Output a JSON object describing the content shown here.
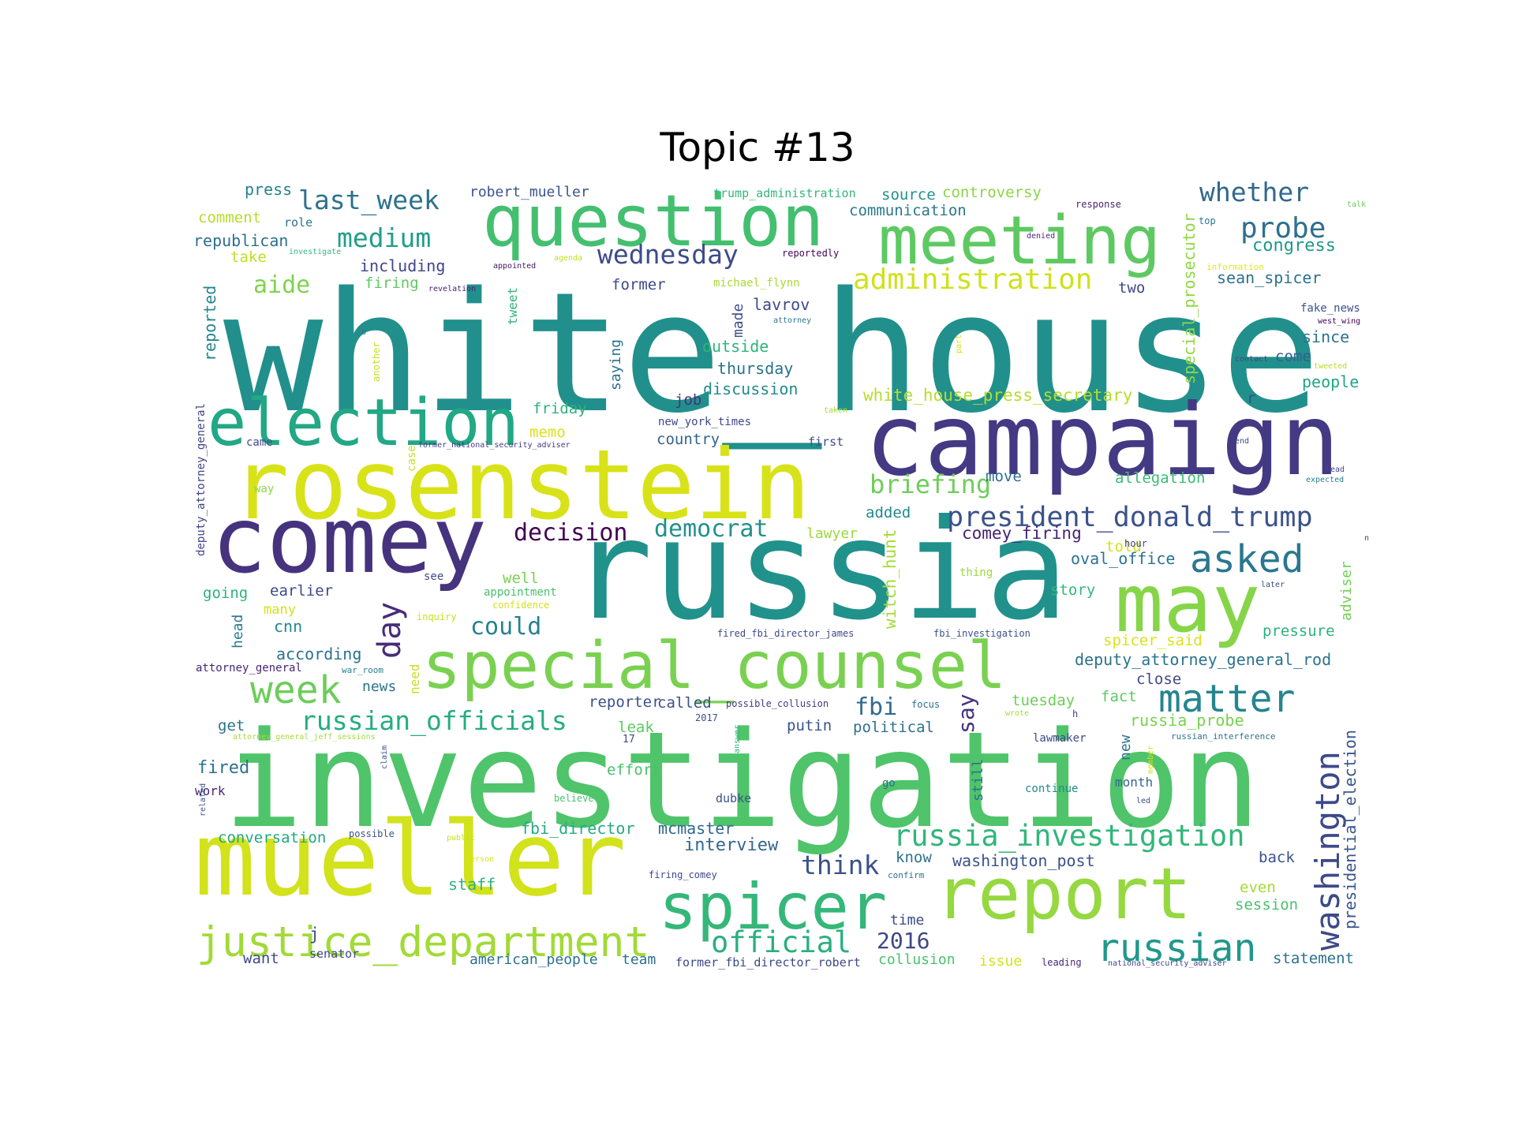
{
  "title": "Topic #13",
  "colors": {
    "background": "#ffffff",
    "title": "#000000"
  },
  "words": [
    {
      "text": "white_house",
      "c": "#21908c"
    },
    {
      "text": "investigation",
      "c": "#4fc46a"
    },
    {
      "text": "russia",
      "c": "#21918c"
    },
    {
      "text": "campaign",
      "c": "#443983"
    },
    {
      "text": "rosenstein",
      "c": "#d8e219"
    },
    {
      "text": "mueller",
      "c": "#d2e21b"
    },
    {
      "text": "comey",
      "c": "#46337e"
    },
    {
      "text": "question",
      "c": "#44bf70"
    },
    {
      "text": "meeting",
      "c": "#5ec962"
    },
    {
      "text": "election",
      "c": "#22a884"
    },
    {
      "text": "special_counsel",
      "c": "#7ad151"
    },
    {
      "text": "report",
      "c": "#95d840"
    },
    {
      "text": "may",
      "c": "#86d549"
    },
    {
      "text": "spicer",
      "c": "#35b779"
    },
    {
      "text": "justice_department",
      "c": "#a2da37"
    },
    {
      "text": "washington",
      "c": "#3e4989"
    },
    {
      "text": "russian",
      "c": "#1f988b"
    },
    {
      "text": "matter",
      "c": "#25858e"
    },
    {
      "text": "week",
      "c": "#6ccd5a"
    },
    {
      "text": "president_donald_trump",
      "c": "#3b528b"
    },
    {
      "text": "asked",
      "c": "#2a788e"
    },
    {
      "text": "russia_investigation",
      "c": "#32b67a"
    },
    {
      "text": "administration",
      "c": "#d0e11c"
    },
    {
      "text": "russian_officials",
      "c": "#26ad81"
    },
    {
      "text": "official",
      "c": "#29af7f"
    },
    {
      "text": "wednesday",
      "c": "#3e4c8a"
    },
    {
      "text": "last_week",
      "c": "#2c728e"
    },
    {
      "text": "probe",
      "c": "#2d708e"
    },
    {
      "text": "whether",
      "c": "#31688e"
    },
    {
      "text": "day",
      "c": "#472c7a"
    },
    {
      "text": "medium",
      "c": "#1f9e89"
    },
    {
      "text": "decision",
      "c": "#440154"
    },
    {
      "text": "democrat",
      "c": "#21918c"
    },
    {
      "text": "briefing",
      "c": "#6ece58"
    },
    {
      "text": "aide",
      "c": "#7fd34e"
    },
    {
      "text": "could",
      "c": "#26828e"
    },
    {
      "text": "think",
      "c": "#3b528b"
    },
    {
      "text": "fbi",
      "c": "#2f6c8e"
    },
    {
      "text": "2016",
      "c": "#3f4788"
    },
    {
      "text": "say",
      "c": "#46327e"
    },
    {
      "text": "interview",
      "c": "#31688e"
    },
    {
      "text": "congress",
      "c": "#1f9a8a"
    },
    {
      "text": "white_house_press_secretary",
      "c": "#b5de2b"
    },
    {
      "text": "witch_hunt",
      "c": "#a5db36"
    },
    {
      "text": "comey_firing",
      "c": "#482173"
    },
    {
      "text": "oval_office",
      "c": "#2c728e"
    },
    {
      "text": "deputy_attorney_general_rod",
      "c": "#2c738e"
    },
    {
      "text": "special_prosecutor",
      "c": "#90d743"
    },
    {
      "text": "sean_spicer",
      "c": "#2d718e"
    },
    {
      "text": "presidential_election",
      "c": "#39568c"
    },
    {
      "text": "russia_probe",
      "c": "#7ad151"
    },
    {
      "text": "fbi_director",
      "c": "#25ab82"
    },
    {
      "text": "washington_post",
      "c": "#3b528b"
    },
    {
      "text": "mcmaster",
      "c": "#31688e"
    },
    {
      "text": "lavrov",
      "c": "#3e4a89"
    },
    {
      "text": "thursday",
      "c": "#2c728e"
    },
    {
      "text": "discussion",
      "c": "#238a8d"
    },
    {
      "text": "outside",
      "c": "#2fb47c"
    },
    {
      "text": "made",
      "c": "#3e4c8a"
    },
    {
      "text": "saying",
      "c": "#2d718e"
    },
    {
      "text": "tweet",
      "c": "#2eb37c"
    },
    {
      "text": "reported",
      "c": "#25858e"
    },
    {
      "text": "deputy_attorney_general",
      "c": "#414487"
    },
    {
      "text": "press",
      "c": "#26828e"
    },
    {
      "text": "robert_mueller",
      "c": "#3a548c"
    },
    {
      "text": "trump_administration",
      "c": "#35b779"
    },
    {
      "text": "source",
      "c": "#21918c"
    },
    {
      "text": "controversy",
      "c": "#8bd646"
    },
    {
      "text": "communication",
      "c": "#2a788e"
    },
    {
      "text": "response",
      "c": "#482475"
    },
    {
      "text": "talk",
      "c": "#6ccd5a"
    },
    {
      "text": "comment",
      "c": "#b5de2b"
    },
    {
      "text": "role",
      "c": "#2c728e"
    },
    {
      "text": "republican",
      "c": "#2d708e"
    },
    {
      "text": "investigate",
      "c": "#35b779"
    },
    {
      "text": "take",
      "c": "#c0df25"
    },
    {
      "text": "including",
      "c": "#3f4788"
    },
    {
      "text": "firing",
      "c": "#5ec962"
    },
    {
      "text": "revelation",
      "c": "#482173"
    },
    {
      "text": "appointed",
      "c": "#481668"
    },
    {
      "text": "agenda",
      "c": "#c2df23"
    },
    {
      "text": "reportedly",
      "c": "#440154"
    },
    {
      "text": "michael_flynn",
      "c": "#a8db34"
    },
    {
      "text": "former",
      "c": "#3e4989"
    },
    {
      "text": "two",
      "c": "#3e4989"
    },
    {
      "text": "denied",
      "c": "#482677"
    },
    {
      "text": "top",
      "c": "#2a788e"
    },
    {
      "text": "information",
      "c": "#e7e419"
    },
    {
      "text": "fake_news",
      "c": "#3b528b"
    },
    {
      "text": "west_wing",
      "c": "#440154"
    },
    {
      "text": "attorney",
      "c": "#2a788e"
    },
    {
      "text": "part",
      "c": "#d2e21b"
    },
    {
      "text": "contact",
      "c": "#3f4788"
    },
    {
      "text": "come",
      "c": "#35608d"
    },
    {
      "text": "since",
      "c": "#2c728e"
    },
    {
      "text": "tweeted",
      "c": "#b5de2b"
    },
    {
      "text": "people",
      "c": "#21a685"
    },
    {
      "text": "another",
      "c": "#c8e020"
    },
    {
      "text": "b",
      "c": "#2a788e"
    },
    {
      "text": "job",
      "c": "#46337f"
    },
    {
      "text": "friday",
      "c": "#2db27d"
    },
    {
      "text": "new_york_times",
      "c": "#3f4788"
    },
    {
      "text": "taken",
      "c": "#a5db36"
    },
    {
      "text": "r",
      "c": "#3e4a89"
    },
    {
      "text": "memo",
      "c": "#dae319"
    },
    {
      "text": "case",
      "c": "#c2df23"
    },
    {
      "text": "first",
      "c": "#3e4c8a"
    },
    {
      "text": "country",
      "c": "#33638d"
    },
    {
      "text": "came",
      "c": "#3e4c8a"
    },
    {
      "text": "former_national_security_adviser",
      "c": "#443a83"
    },
    {
      "text": "end",
      "c": "#3e4989"
    },
    {
      "text": "lead",
      "c": "#3e4989"
    },
    {
      "text": "expected",
      "c": "#26818e"
    },
    {
      "text": "way",
      "c": "#8bd646"
    },
    {
      "text": "move",
      "c": "#2d708e"
    },
    {
      "text": "allegation",
      "c": "#3dbc74"
    },
    {
      "text": "added",
      "c": "#23898e"
    },
    {
      "text": "lawyer",
      "c": "#9bd93c"
    },
    {
      "text": "told",
      "c": "#d5e21a"
    },
    {
      "text": "hour",
      "c": "#3e4989"
    },
    {
      "text": "n",
      "c": "#3e4989"
    },
    {
      "text": "thing",
      "c": "#9bd93c"
    },
    {
      "text": "well",
      "c": "#7ad151"
    },
    {
      "text": "see",
      "c": "#3e4989"
    },
    {
      "text": "appointment",
      "c": "#4ac16d"
    },
    {
      "text": "story",
      "c": "#35b779"
    },
    {
      "text": "later",
      "c": "#3e4989"
    },
    {
      "text": "adviser",
      "c": "#73d056"
    },
    {
      "text": "going",
      "c": "#2db27d"
    },
    {
      "text": "earlier",
      "c": "#3e4989"
    },
    {
      "text": "many",
      "c": "#d2e21b"
    },
    {
      "text": "confidence",
      "c": "#d5e21a"
    },
    {
      "text": "inquiry",
      "c": "#c8e020"
    },
    {
      "text": "cnn",
      "c": "#23898e"
    },
    {
      "text": "head",
      "c": "#2a788e"
    },
    {
      "text": "fired_fbi_director_james",
      "c": "#3e4989"
    },
    {
      "text": "fbi_investigation",
      "c": "#3b528b"
    },
    {
      "text": "spicer_said",
      "c": "#dae319"
    },
    {
      "text": "pressure",
      "c": "#2db27d"
    },
    {
      "text": "according",
      "c": "#2c728e"
    },
    {
      "text": "attorney_general",
      "c": "#482576"
    },
    {
      "text": "war_room",
      "c": "#26828e"
    },
    {
      "text": "need",
      "c": "#c8e020"
    },
    {
      "text": "close",
      "c": "#3e4989"
    },
    {
      "text": "news",
      "c": "#2c728e"
    },
    {
      "text": "reporter",
      "c": "#3b528b"
    },
    {
      "text": "called",
      "c": "#3b528b"
    },
    {
      "text": "possible_collusion",
      "c": "#443983"
    },
    {
      "text": "focus",
      "c": "#2c728e"
    },
    {
      "text": "tuesday",
      "c": "#6ccd5a"
    },
    {
      "text": "fact",
      "c": "#5ec962"
    },
    {
      "text": "wrote",
      "c": "#a5db36"
    },
    {
      "text": "get",
      "c": "#2c728e"
    },
    {
      "text": "leak",
      "c": "#5ec962"
    },
    {
      "text": "2017",
      "c": "#3b528b"
    },
    {
      "text": "putin",
      "c": "#3b528b"
    },
    {
      "text": "political",
      "c": "#2c728e"
    },
    {
      "text": "lawmaker",
      "c": "#3e4989"
    },
    {
      "text": "russian_interference",
      "c": "#2c728e"
    },
    {
      "text": "attorney_general_jeff_sessions",
      "c": "#a5db36"
    },
    {
      "text": "17",
      "c": "#3e4989"
    },
    {
      "text": "answer",
      "c": "#2eb37c"
    },
    {
      "text": "new",
      "c": "#2c728e"
    },
    {
      "text": "member",
      "c": "#d5e21a"
    },
    {
      "text": "fired",
      "c": "#2c728e"
    },
    {
      "text": "effort",
      "c": "#4ac16d"
    },
    {
      "text": "still",
      "c": "#2c728e"
    },
    {
      "text": "month",
      "c": "#31688e"
    },
    {
      "text": "claim",
      "c": "#3b528b"
    },
    {
      "text": "go",
      "c": "#2c728e"
    },
    {
      "text": "continue",
      "c": "#238a8d"
    },
    {
      "text": "work",
      "c": "#482576"
    },
    {
      "text": "believe",
      "c": "#4ac16d"
    },
    {
      "text": "dubke",
      "c": "#3b528b"
    },
    {
      "text": "led",
      "c": "#3e4989"
    },
    {
      "text": "related",
      "c": "#3b528b"
    },
    {
      "text": "conversation",
      "c": "#22a884"
    },
    {
      "text": "possible",
      "c": "#3b528b"
    },
    {
      "text": "public",
      "c": "#c8e020"
    },
    {
      "text": "person",
      "c": "#dae319"
    },
    {
      "text": "know",
      "c": "#2c728e"
    },
    {
      "text": "back",
      "c": "#3b528b"
    },
    {
      "text": "staff",
      "c": "#2eb37c"
    },
    {
      "text": "firing_comey",
      "c": "#3e4989"
    },
    {
      "text": "confirm",
      "c": "#2c728e"
    },
    {
      "text": "even",
      "c": "#a5db36"
    },
    {
      "text": "session",
      "c": "#4ac16d"
    },
    {
      "text": "time",
      "c": "#3e4989"
    },
    {
      "text": "j",
      "c": "#3e4989"
    },
    {
      "text": "want",
      "c": "#3e4989"
    },
    {
      "text": "senator",
      "c": "#3e4989"
    },
    {
      "text": "american_people",
      "c": "#2c728e"
    },
    {
      "text": "team",
      "c": "#2c728e"
    },
    {
      "text": "former_fbi_director_robert",
      "c": "#3e4989"
    },
    {
      "text": "collusion",
      "c": "#4ac16d"
    },
    {
      "text": "issue",
      "c": "#d5e21a"
    },
    {
      "text": "leading",
      "c": "#482576"
    },
    {
      "text": "national_security_adviser",
      "c": "#3e4989"
    },
    {
      "text": "statement",
      "c": "#2c728e"
    },
    {
      "text": "h",
      "c": "#3e4989"
    }
  ]
}
